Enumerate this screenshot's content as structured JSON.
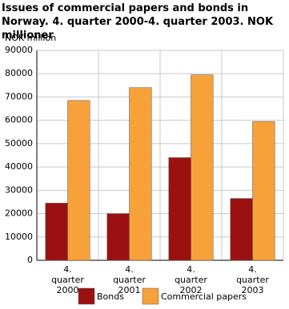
{
  "chart_data": {
    "type": "bar",
    "title": "Issues of commercial papers and bonds in Norway. 4. quarter 2000-4. quarter 2003. NOK millioner",
    "y_label": "NOK million",
    "categories": [
      "4. quarter 2000",
      "4. quarter 2001",
      "4. quarter 2002",
      "4. quarter 2003"
    ],
    "series": [
      {
        "name": "Bonds",
        "color": "#9b1111",
        "values": [
          24500,
          20000,
          44000,
          26500
        ]
      },
      {
        "name": "Commercial papers",
        "color": "#f7a13b",
        "values": [
          68500,
          74000,
          79500,
          59500
        ]
      }
    ],
    "ylim": [
      0,
      90000
    ],
    "yticks": [
      0,
      10000,
      20000,
      30000,
      40000,
      50000,
      60000,
      70000,
      80000,
      90000
    ],
    "grid": true
  }
}
